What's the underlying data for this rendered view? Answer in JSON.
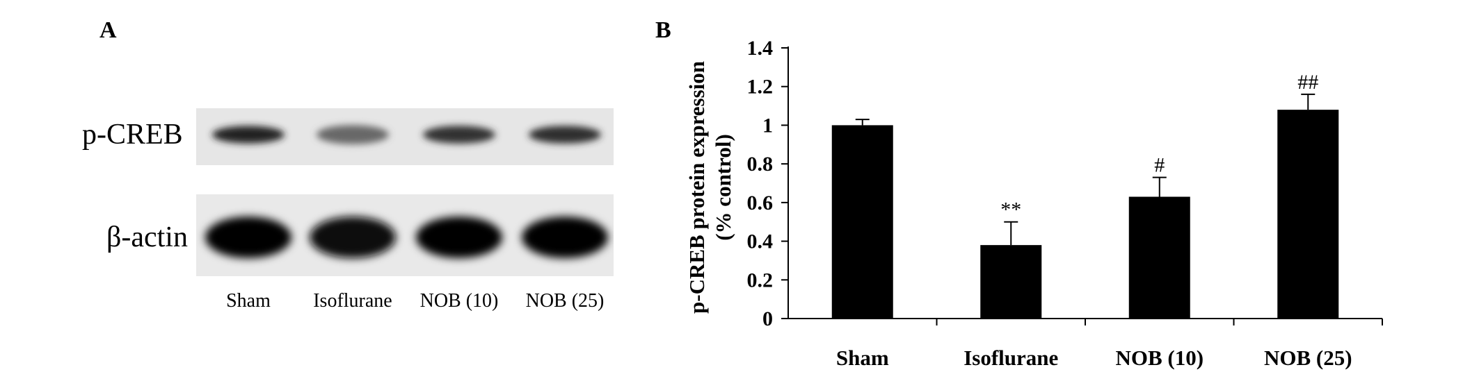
{
  "panel_a": {
    "label": "A",
    "rows": [
      {
        "name": "p-CREB",
        "band_intensity": [
          0.85,
          0.55,
          0.78,
          0.8
        ]
      },
      {
        "name": "β-actin",
        "band_intensity": [
          1.0,
          0.97,
          0.98,
          0.98
        ]
      }
    ],
    "lanes": [
      "Sham",
      "Isoflurane",
      "NOB (10)",
      "NOB (25)"
    ]
  },
  "panel_b": {
    "label": "B"
  },
  "chart_data": {
    "type": "bar",
    "categories": [
      "Sham",
      "Isoflurane",
      "NOB (10)",
      "NOB (25)"
    ],
    "values": [
      1.0,
      0.38,
      0.63,
      1.08
    ],
    "errors": [
      0.03,
      0.12,
      0.1,
      0.08
    ],
    "annotations": [
      "",
      "**",
      "#",
      "##"
    ],
    "title": "",
    "xlabel": "",
    "ylabel_line1": "p-CREB protein expression",
    "ylabel_line2": "(% control)",
    "ylim": [
      0,
      1.4
    ],
    "yticks": [
      "0",
      "0.2",
      "0.4",
      "0.6",
      "0.8",
      "1",
      "1.2",
      "1.4"
    ],
    "ytick_values": [
      0,
      0.2,
      0.4,
      0.6,
      0.8,
      1.0,
      1.2,
      1.4
    ],
    "bar_color": "#000000",
    "grid": false,
    "legend": "none"
  }
}
